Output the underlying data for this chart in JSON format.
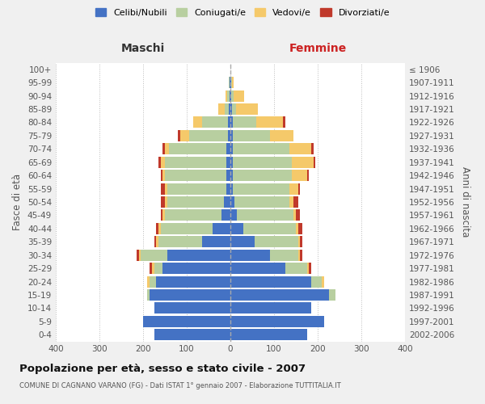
{
  "age_groups": [
    "0-4",
    "5-9",
    "10-14",
    "15-19",
    "20-24",
    "25-29",
    "30-34",
    "35-39",
    "40-44",
    "45-49",
    "50-54",
    "55-59",
    "60-64",
    "65-69",
    "70-74",
    "75-79",
    "80-84",
    "85-89",
    "90-94",
    "95-99",
    "100+"
  ],
  "birth_years": [
    "2002-2006",
    "1997-2001",
    "1992-1996",
    "1987-1991",
    "1982-1986",
    "1977-1981",
    "1972-1976",
    "1967-1971",
    "1962-1966",
    "1957-1961",
    "1952-1956",
    "1947-1951",
    "1942-1946",
    "1937-1941",
    "1932-1936",
    "1927-1931",
    "1922-1926",
    "1917-1921",
    "1912-1916",
    "1907-1911",
    "≤ 1906"
  ],
  "males_celibe": [
    175,
    200,
    175,
    185,
    170,
    155,
    145,
    65,
    40,
    20,
    15,
    10,
    10,
    10,
    10,
    5,
    5,
    3,
    2,
    1,
    0
  ],
  "males_coniugato": [
    0,
    0,
    0,
    5,
    15,
    20,
    60,
    100,
    120,
    130,
    130,
    135,
    140,
    140,
    130,
    90,
    60,
    10,
    5,
    2,
    0
  ],
  "males_vedovo": [
    0,
    0,
    0,
    0,
    5,
    5,
    5,
    5,
    5,
    5,
    5,
    5,
    5,
    10,
    10,
    20,
    20,
    15,
    5,
    0,
    0
  ],
  "males_divorziato": [
    0,
    0,
    0,
    0,
    0,
    5,
    5,
    5,
    5,
    5,
    10,
    10,
    5,
    5,
    5,
    5,
    0,
    0,
    0,
    0,
    0
  ],
  "females_celibe": [
    175,
    215,
    185,
    225,
    185,
    125,
    90,
    55,
    30,
    15,
    10,
    5,
    5,
    5,
    5,
    5,
    5,
    3,
    2,
    1,
    0
  ],
  "females_coniugato": [
    0,
    0,
    0,
    15,
    25,
    50,
    65,
    100,
    120,
    130,
    125,
    130,
    135,
    135,
    130,
    85,
    55,
    10,
    5,
    2,
    0
  ],
  "females_vedovo": [
    0,
    0,
    0,
    0,
    5,
    5,
    5,
    5,
    5,
    5,
    10,
    20,
    35,
    50,
    50,
    55,
    60,
    50,
    25,
    5,
    0
  ],
  "females_divorziato": [
    0,
    0,
    0,
    0,
    0,
    5,
    5,
    5,
    10,
    10,
    10,
    5,
    5,
    5,
    5,
    0,
    5,
    0,
    0,
    0,
    0
  ],
  "colors": {
    "celibe": "#4472c4",
    "coniugato": "#b8cfa0",
    "vedovo": "#f5c96a",
    "divorziato": "#c0392b"
  },
  "legend_labels": [
    "Celibi/Nubili",
    "Coniugati/e",
    "Vedovi/e",
    "Divorziati/e"
  ],
  "label_maschi": "Maschi",
  "label_femmine": "Femmine",
  "ylabel_left": "Fasce di età",
  "ylabel_right": "Anni di nascita",
  "xlim": 400,
  "title": "Popolazione per età, sesso e stato civile - 2007",
  "subtitle": "COMUNE DI CAGNANO VARANO (FG) - Dati ISTAT 1° gennaio 2007 - Elaborazione TUTTITALIA.IT",
  "bg_color": "#f0f0f0",
  "plot_bg": "#ffffff",
  "grid_color": "#cccccc"
}
